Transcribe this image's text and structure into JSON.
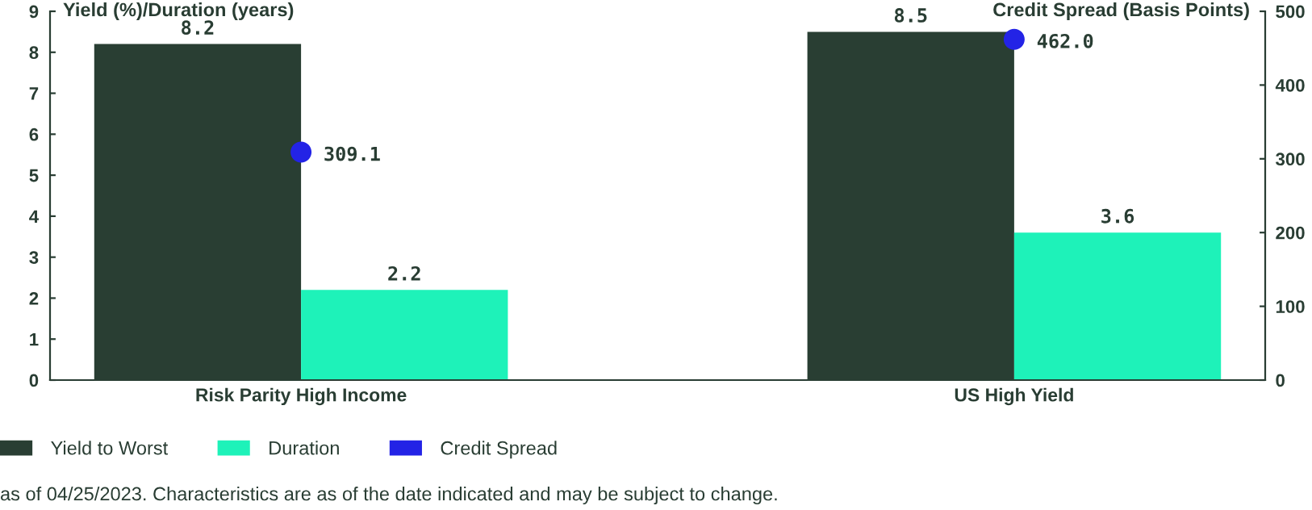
{
  "chart_data": {
    "type": "bar",
    "categories": [
      "Risk Parity High Income",
      "US High Yield"
    ],
    "series": [
      {
        "name": "Yield to Worst",
        "color": "#293e33",
        "values": [
          8.2,
          8.5
        ],
        "value_labels": [
          "8.2",
          "8.5"
        ]
      },
      {
        "name": "Duration",
        "color": "#1ef2b9",
        "values": [
          2.2,
          3.6
        ],
        "value_labels": [
          "2.2",
          "3.6"
        ]
      },
      {
        "name": "Credit Spread",
        "color": "#2323e6",
        "type": "scatter",
        "axis": "y2",
        "marker": "circle",
        "x": [
          "Risk Parity High Income",
          "US High Yield"
        ],
        "values": [
          309.1,
          462.0
        ],
        "value_labels": [
          "309.1",
          "462.0"
        ]
      }
    ],
    "ylabel": "Yield (%)/Duration (years)",
    "y2label": "Credit Spread (Basis Points)",
    "ylim": [
      0,
      9
    ],
    "yticks": [
      0,
      1,
      2,
      3,
      4,
      5,
      6,
      7,
      8,
      9
    ],
    "y2lim": [
      0,
      500
    ],
    "y2ticks": [
      0,
      100,
      200,
      300,
      400,
      500
    ],
    "legend": "bottom left",
    "annotations": [
      "as of 04/25/2023. Characteristics are as of the date indicated and may be subject to change."
    ]
  }
}
